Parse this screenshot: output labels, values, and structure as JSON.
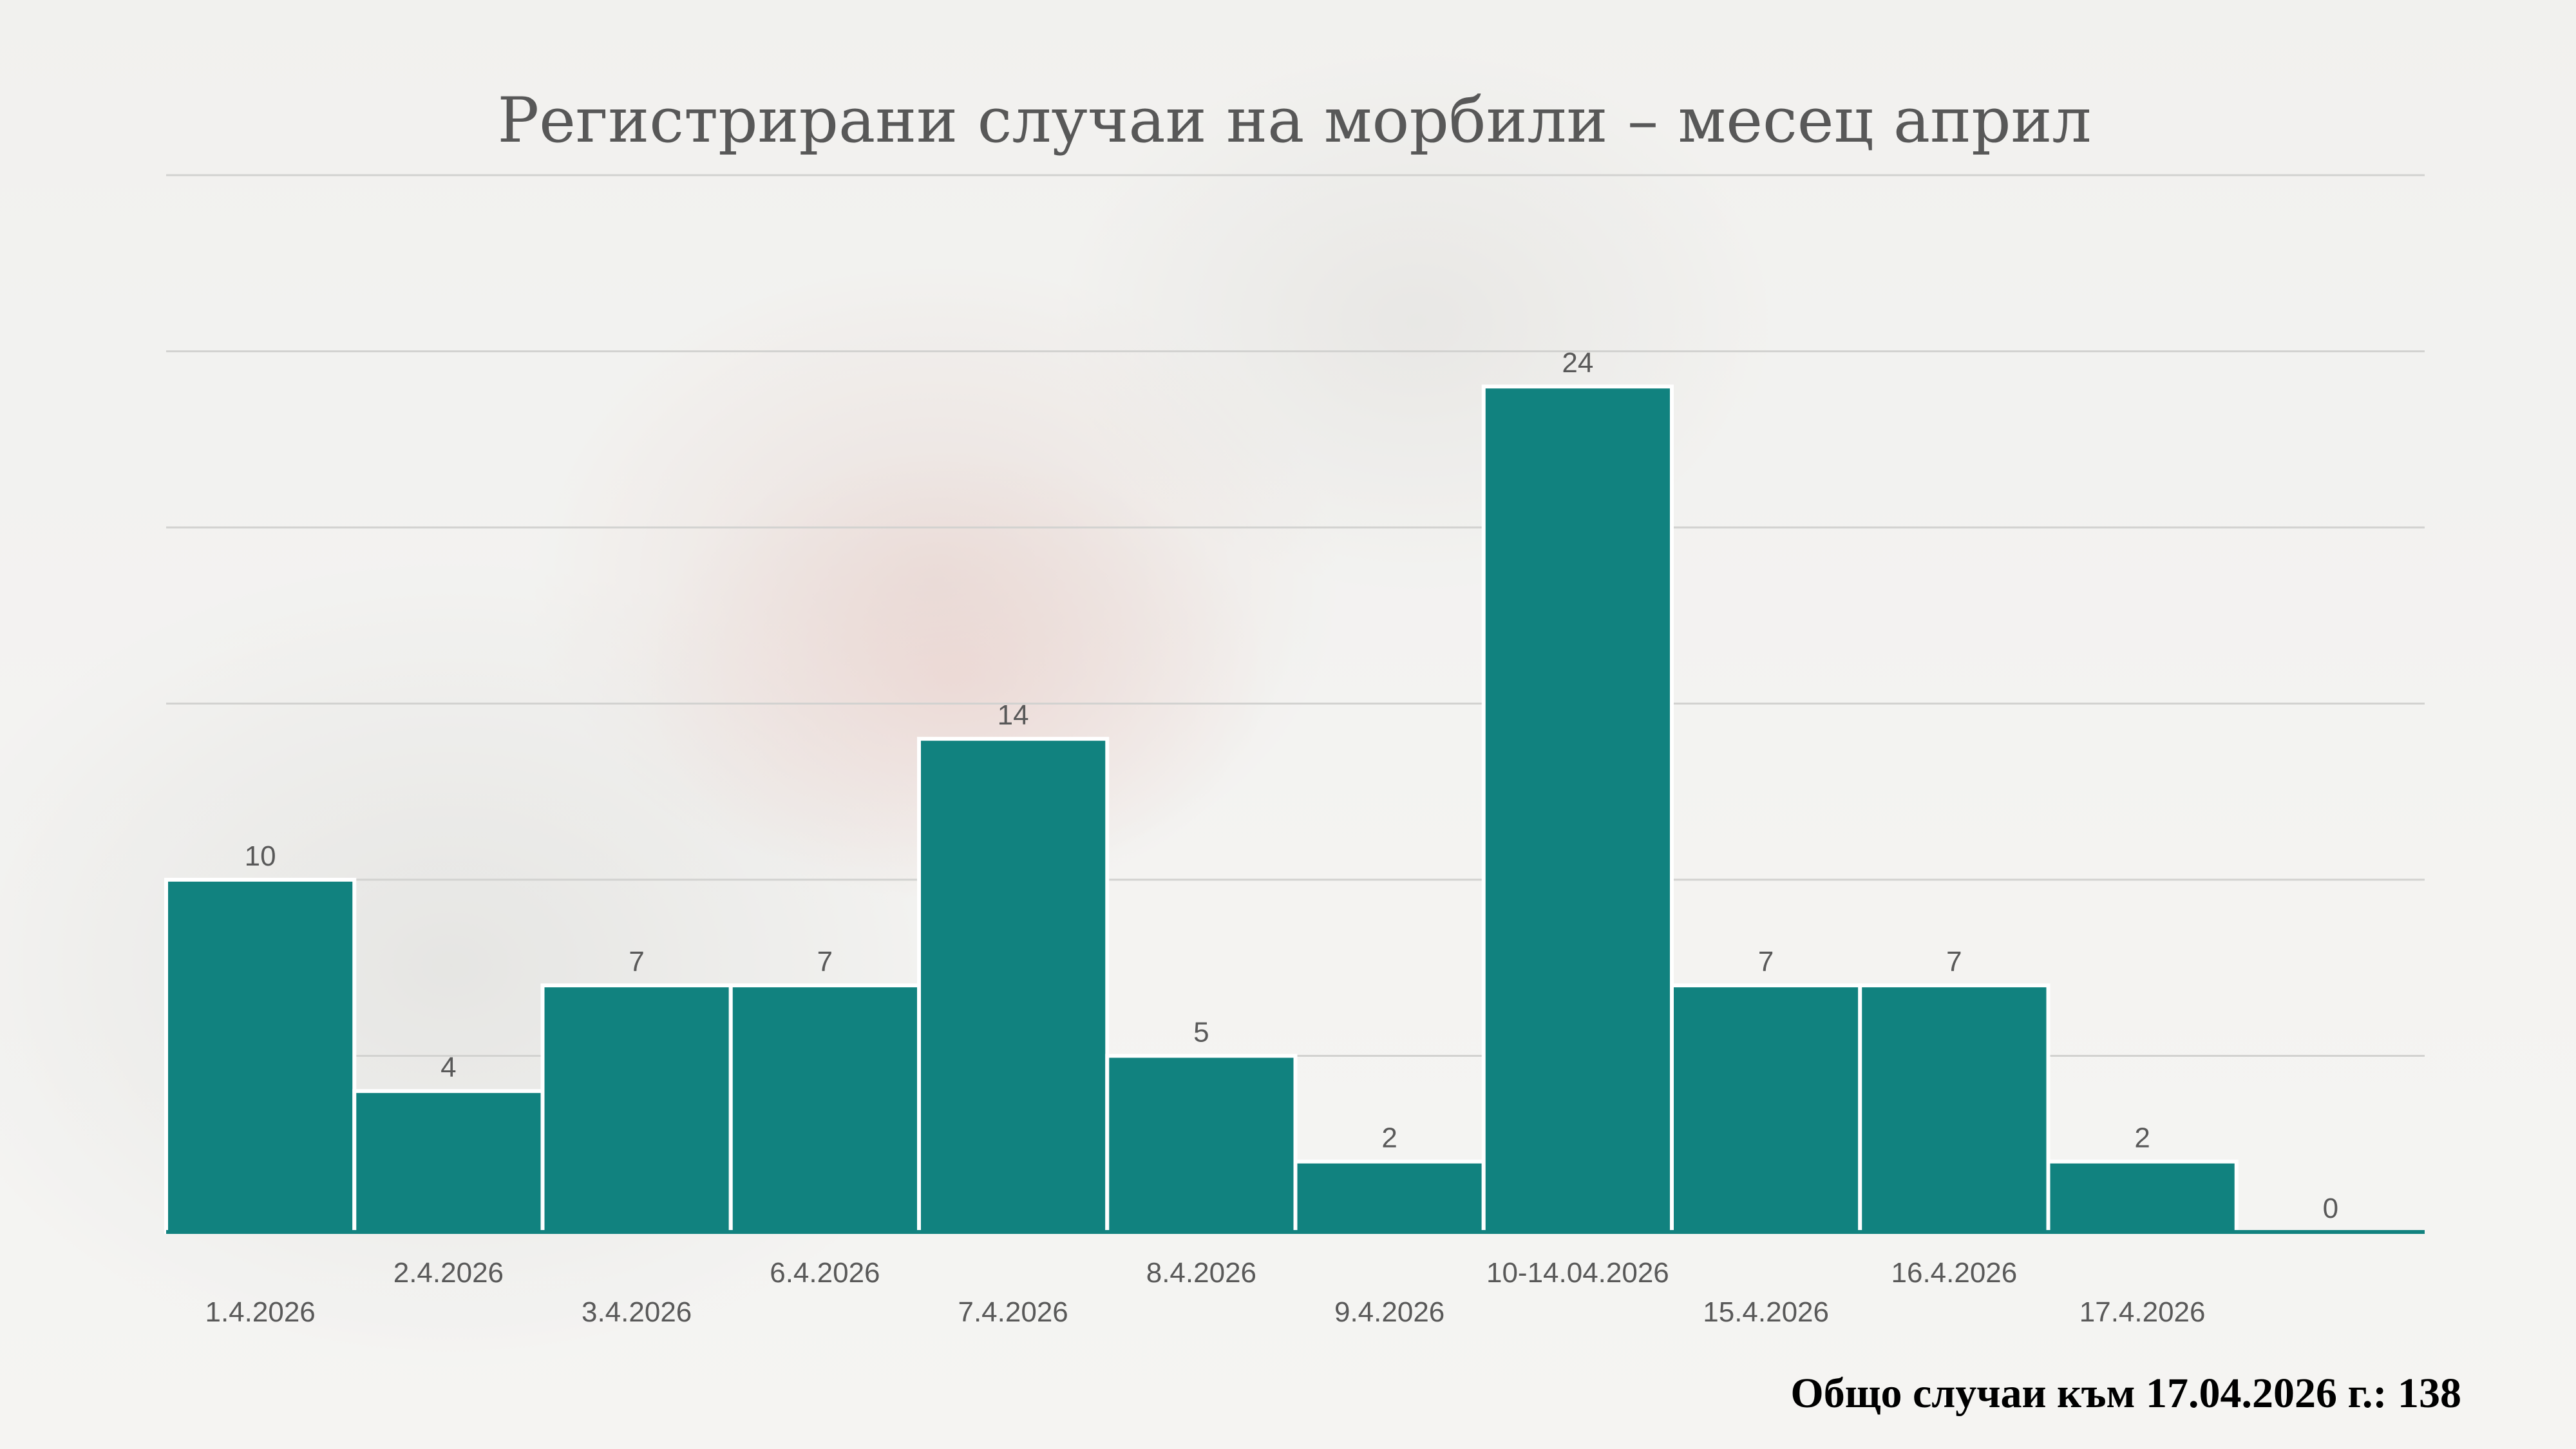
{
  "chart_data": {
    "type": "bar",
    "title": "Регистрирани случаи на морбили – месец април",
    "categories": [
      "1.4.2026",
      "2.4.2026",
      "3.4.2026",
      "6.4.2026",
      "7.4.2026",
      "8.4.2026",
      "9.4.2026",
      "10-14.04.2026",
      "15.4.2026",
      "16.4.2026",
      "17.4.2026",
      ""
    ],
    "values": [
      10,
      4,
      7,
      7,
      14,
      5,
      2,
      24,
      7,
      7,
      2,
      0
    ],
    "ylim": [
      0,
      30
    ],
    "grid": true,
    "bar_color": "#11827f",
    "bar_outline": "#ffffff"
  },
  "footer": {
    "total_text": "Общо случаи към 17.04.2026 г.: 138"
  }
}
